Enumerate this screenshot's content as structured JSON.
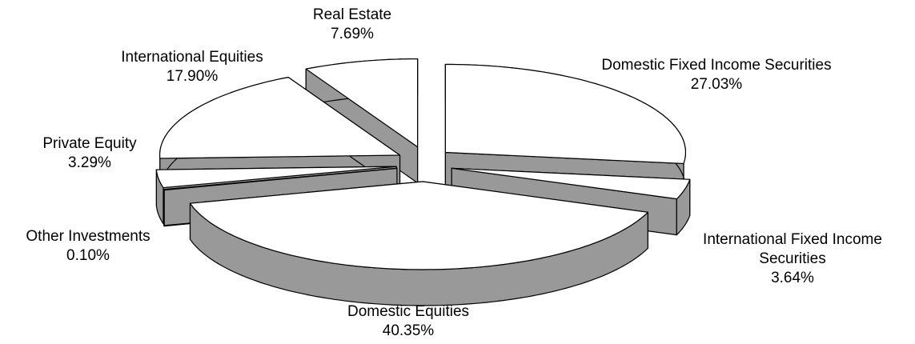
{
  "chart_data": {
    "type": "pie3d",
    "categories": [
      "Domestic Fixed Income Securities",
      "International Fixed Income Securities",
      "Domestic Equities",
      "Other Investments",
      "Private Equity",
      "International Equities",
      "Real Estate"
    ],
    "values": [
      27.03,
      3.64,
      40.35,
      0.1,
      3.29,
      17.9,
      7.69
    ],
    "value_labels": [
      "27.03%",
      "3.64%",
      "40.35%",
      "0.10%",
      "3.29%",
      "17.90%",
      "7.69%"
    ],
    "top_color": "#ffffff",
    "side_color": "#999999"
  }
}
